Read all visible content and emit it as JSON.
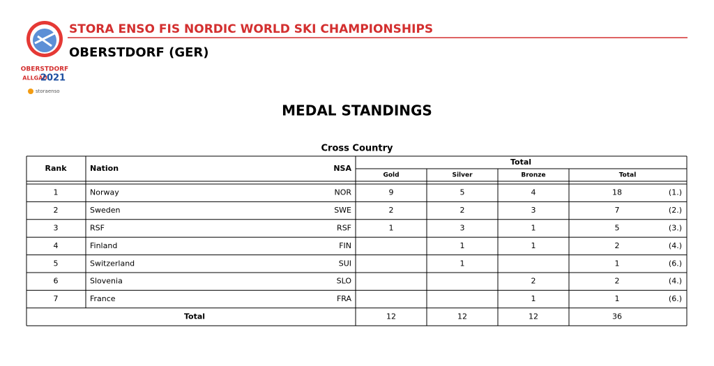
{
  "logo": {
    "line1": "OBERSTDORF",
    "line2": "ALLGÄU",
    "year": "2021",
    "sponsor": "storaenso"
  },
  "header": {
    "title": "STORA ENSO FIS NORDIC WORLD SKI CHAMPIONSHIPS",
    "subtitle": "OBERSTDORF (GER)"
  },
  "heading": "MEDAL STANDINGS",
  "table": {
    "caption": "Cross Country",
    "columns": {
      "rank": "Rank",
      "nation": "Nation",
      "nsa": "NSA",
      "group": "Total",
      "gold": "Gold",
      "silver": "Silver",
      "bronze": "Bronze",
      "total": "Total"
    },
    "rows": [
      {
        "rank": 1,
        "nation": "Norway",
        "nsa": "NOR",
        "gold": 9,
        "silver": 5,
        "bronze": 4,
        "total": 18,
        "place": "(1.)"
      },
      {
        "rank": 2,
        "nation": "Sweden",
        "nsa": "SWE",
        "gold": 2,
        "silver": 2,
        "bronze": 3,
        "total": 7,
        "place": "(2.)"
      },
      {
        "rank": 3,
        "nation": "RSF",
        "nsa": "RSF",
        "gold": 1,
        "silver": 3,
        "bronze": 1,
        "total": 5,
        "place": "(3.)"
      },
      {
        "rank": 4,
        "nation": "Finland",
        "nsa": "FIN",
        "gold": null,
        "silver": 1,
        "bronze": 1,
        "total": 2,
        "place": "(4.)"
      },
      {
        "rank": 5,
        "nation": "Switzerland",
        "nsa": "SUI",
        "gold": null,
        "silver": 1,
        "bronze": null,
        "total": 1,
        "place": "(6.)"
      },
      {
        "rank": 6,
        "nation": "Slovenia",
        "nsa": "SLO",
        "gold": null,
        "silver": null,
        "bronze": 2,
        "total": 2,
        "place": "(4.)"
      },
      {
        "rank": 7,
        "nation": "France",
        "nsa": "FRA",
        "gold": null,
        "silver": null,
        "bronze": 1,
        "total": 1,
        "place": "(6.)"
      }
    ],
    "totals": {
      "label": "Total",
      "gold": 12,
      "silver": 12,
      "bronze": 12,
      "total": 36
    }
  }
}
